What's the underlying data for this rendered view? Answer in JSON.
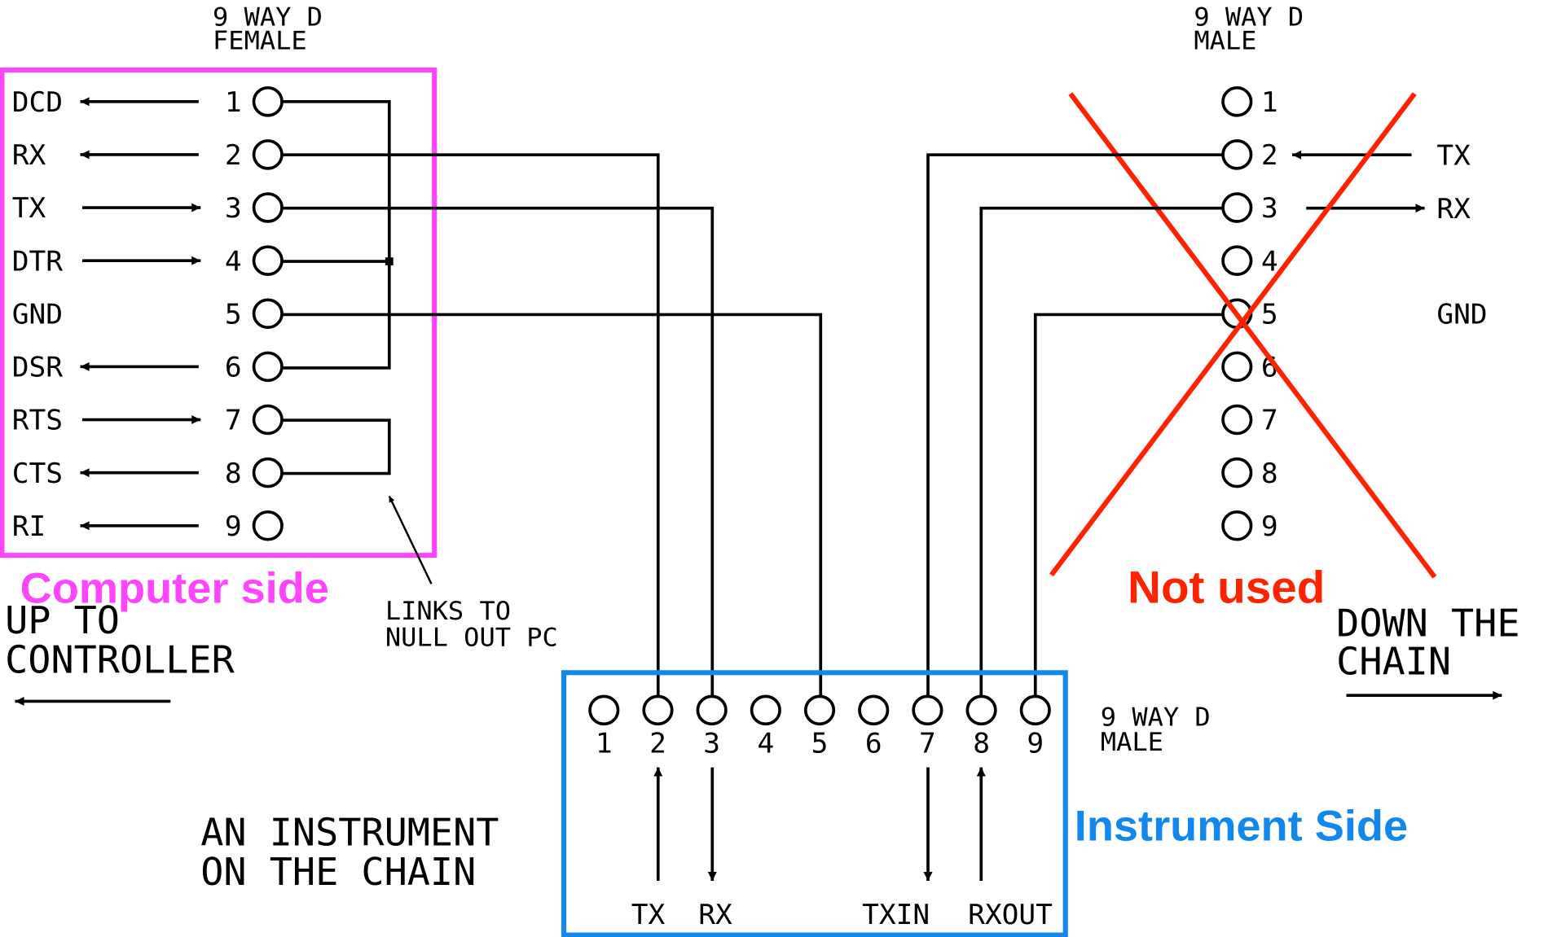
{
  "computer": {
    "header": [
      "9 WAY D",
      "FEMALE"
    ],
    "box_label": "Computer side",
    "box_color": "#ff44ff",
    "pins": [
      {
        "signal": "DCD",
        "num": "1",
        "dir": "out"
      },
      {
        "signal": "RX",
        "num": "2",
        "dir": "out"
      },
      {
        "signal": "TX",
        "num": "3",
        "dir": "in"
      },
      {
        "signal": "DTR",
        "num": "4",
        "dir": "in"
      },
      {
        "signal": "GND",
        "num": "5",
        "dir": "none"
      },
      {
        "signal": "DSR",
        "num": "6",
        "dir": "out"
      },
      {
        "signal": "RTS",
        "num": "7",
        "dir": "in"
      },
      {
        "signal": "CTS",
        "num": "8",
        "dir": "out"
      },
      {
        "signal": "RI",
        "num": "9",
        "dir": "out"
      }
    ],
    "links_note": [
      "LINKS TO",
      "NULL OUT PC"
    ],
    "up_label": [
      "UP TO",
      "CONTROLLER"
    ]
  },
  "chain": {
    "header": [
      "9 WAY D",
      "MALE"
    ],
    "box_label": "Not used",
    "cross_color": "#ff2200",
    "pins": [
      "1",
      "2",
      "3",
      "4",
      "5",
      "6",
      "7",
      "8",
      "9"
    ],
    "signals": {
      "tx": "TX",
      "rx": "RX",
      "gnd": "GND"
    },
    "down_label": [
      "DOWN THE",
      "CHAIN"
    ]
  },
  "instrument": {
    "header": [
      "9 WAY D",
      "MALE"
    ],
    "box_label": "Instrument Side",
    "box_color": "#1188ee",
    "pins": [
      "1",
      "2",
      "3",
      "4",
      "5",
      "6",
      "7",
      "8",
      "9"
    ],
    "bottom_labels": [
      "TX",
      "RX",
      "TXIN",
      "RXOUT"
    ],
    "desc": [
      "AN INSTRUMENT",
      "ON THE CHAIN"
    ]
  }
}
